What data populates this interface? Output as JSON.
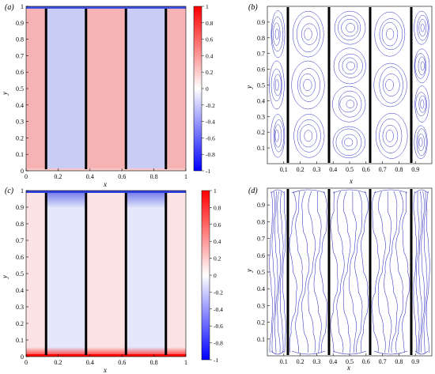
{
  "panels": [
    {
      "label": "(a)",
      "kind": "contour",
      "variant": "a",
      "xlabel": "x",
      "ylabel": "y",
      "xticks": [
        "0",
        "0.2",
        "0.4",
        "0.6",
        "0.8",
        "1"
      ],
      "yticks": [
        "0",
        "0.1",
        "0.2",
        "0.3",
        "0.4",
        "0.5",
        "0.6",
        "0.7",
        "0.8",
        "0.9",
        "1"
      ],
      "colorbar": {
        "ticks": [
          "1",
          "0.8",
          "0.6",
          "0.4",
          "0.2",
          "0",
          "-0.2",
          "-0.4",
          "-0.6",
          "-0.8",
          "-1"
        ],
        "colors": [
          "#ff0000",
          "#ffffff",
          "#0000ff"
        ]
      }
    },
    {
      "label": "(b)",
      "kind": "streamline",
      "xlabel": "x",
      "ylabel": "y",
      "xticks": [
        "0.1",
        "0.2",
        "0.3",
        "0.4",
        "0.5",
        "0.6",
        "0.7",
        "0.8",
        "0.9"
      ],
      "yticks": [
        "0.1",
        "0.2",
        "0.3",
        "0.4",
        "0.5",
        "0.6",
        "0.7",
        "0.8",
        "0.9"
      ]
    },
    {
      "label": "(c)",
      "kind": "contour",
      "variant": "c",
      "xlabel": "x",
      "ylabel": "y",
      "xticks": [
        "0",
        "0.2",
        "0.4",
        "0.6",
        "0.8",
        "1"
      ],
      "yticks": [
        "0",
        "0.1",
        "0.2",
        "0.3",
        "0.4",
        "0.5",
        "0.6",
        "0.7",
        "0.8",
        "0.9",
        "1"
      ],
      "colorbar": {
        "ticks": [
          "1",
          "0.8",
          "0.6",
          "0.4",
          "0.2",
          "0",
          "-0.2",
          "-0.4",
          "-0.6",
          "-0.8",
          "-1"
        ],
        "colors": [
          "#ff0000",
          "#ffffff",
          "#0000ff"
        ]
      }
    },
    {
      "label": "(d)",
      "kind": "streamline",
      "xlabel": "x",
      "ylabel": "y",
      "xticks": [
        "0.1",
        "0.2",
        "0.3",
        "0.4",
        "0.5",
        "0.6",
        "0.7",
        "0.8",
        "0.9"
      ],
      "yticks": [
        "0.1",
        "0.2",
        "0.3",
        "0.4",
        "0.5",
        "0.6",
        "0.7",
        "0.8",
        "0.9"
      ]
    }
  ],
  "plates_x": [
    0.125,
    0.375,
    0.625,
    0.875
  ],
  "colors": {
    "positive_tint": "#f7b3b3",
    "negative_tint": "#c9cdf5",
    "streamline": "#2f2fbf",
    "plate": "#000000"
  }
}
